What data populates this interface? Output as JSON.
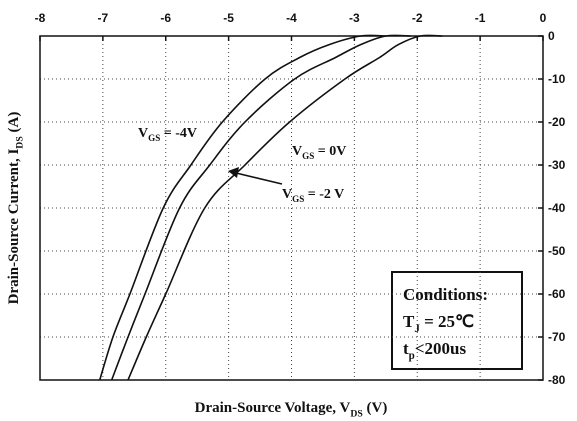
{
  "chart_data": {
    "type": "line",
    "x_label": [
      "Drain-Source Voltage, V",
      "DS",
      " (V)"
    ],
    "y_label": [
      "Drain-Source Current, I",
      "DS",
      " (A)"
    ],
    "xlim": [
      -8,
      0
    ],
    "xticks": [
      -8,
      -7,
      -6,
      -5,
      -4,
      -3,
      -2,
      -1,
      0
    ],
    "ylim": [
      -80,
      0
    ],
    "yticks": [
      0,
      -10,
      -20,
      -30,
      -40,
      -50,
      -60,
      -70,
      -80
    ],
    "grid": true,
    "series": [
      {
        "color": "#111111",
        "x": [
          -7.05,
          -6.84,
          -6.57,
          -6.04,
          -5.6,
          -5.1,
          -4.42,
          -3.87,
          -3.4,
          -2.9,
          -2.5
        ],
        "values": [
          -80,
          -70,
          -60,
          -40,
          -30,
          -20,
          -10,
          -5,
          -2,
          0,
          0
        ]
      },
      {
        "color": "#111111",
        "x": [
          -6.86,
          -6.6,
          -6.33,
          -5.78,
          -5.3,
          -4.74,
          -3.95,
          -3.3,
          -2.9,
          -2.5,
          -2.1
        ],
        "values": [
          -80,
          -70,
          -60,
          -40,
          -30,
          -20,
          -10,
          -5,
          -2,
          0,
          0
        ]
      },
      {
        "color": "#111111",
        "x": [
          -6.6,
          -6.31,
          -6.0,
          -5.38,
          -4.74,
          -4.03,
          -3.15,
          -2.6,
          -2.3,
          -1.95,
          -1.6
        ],
        "values": [
          -80,
          -70,
          -60,
          -40,
          -30,
          -20,
          -10,
          -5,
          -2,
          0,
          0
        ]
      }
    ],
    "annotations": [
      [
        "V",
        "GS",
        " = -4V"
      ],
      [
        "V",
        "GS",
        " = 0V"
      ],
      [
        "V",
        "GS",
        " = -2 V"
      ]
    ],
    "conditions": [
      [
        "Conditions:"
      ],
      [
        "T",
        "J",
        " = 25℃"
      ],
      [
        "t",
        "p",
        "<200us"
      ]
    ]
  }
}
